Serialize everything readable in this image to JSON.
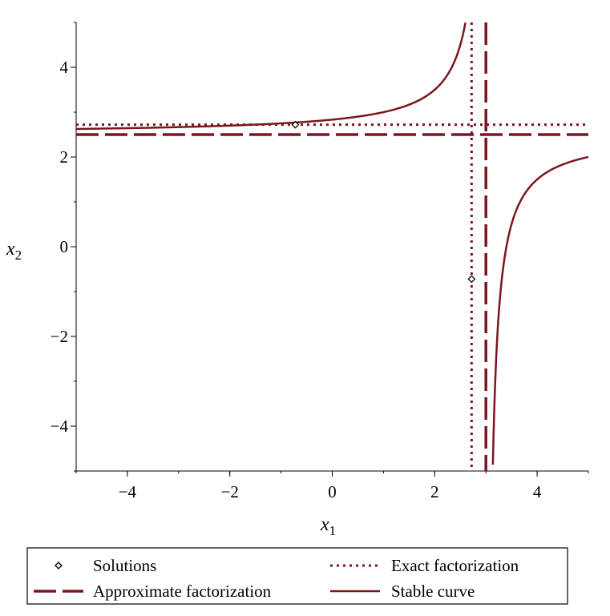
{
  "chart_data": {
    "type": "line",
    "title": "",
    "xlabel": "x",
    "xlabel_sub": "1",
    "ylabel": "x",
    "ylabel_sub": "2",
    "xlim": [
      -5,
      5
    ],
    "ylim": [
      -5,
      5
    ],
    "xticks": [
      -4,
      -2,
      0,
      2,
      4
    ],
    "yticks": [
      -4,
      -2,
      0,
      2,
      4
    ],
    "tick_labels_x": [
      "−4",
      "−2",
      "0",
      "2",
      "4"
    ],
    "tick_labels_y": [
      "−4",
      "−2",
      "0",
      "2",
      "4"
    ],
    "grid": false,
    "legend_position": "bottom",
    "color": "#7a1620",
    "solutions": [
      {
        "x": -0.72,
        "y": 2.72
      },
      {
        "x": 2.72,
        "y": -0.72
      }
    ],
    "exact_factorization": {
      "x": 2.72,
      "y": 2.72
    },
    "approximate_factorization": {
      "x": 3.0,
      "y": 2.5
    },
    "stable_curve_params": {
      "a": 3.0,
      "b": 2.5,
      "c": -1.0
    },
    "legend": [
      {
        "label": "Solutions",
        "style": "marker"
      },
      {
        "label": "Exact factorization",
        "style": "dotted"
      },
      {
        "label": "Approximate factorization",
        "style": "dashed"
      },
      {
        "label": "Stable curve",
        "style": "solid"
      }
    ]
  }
}
